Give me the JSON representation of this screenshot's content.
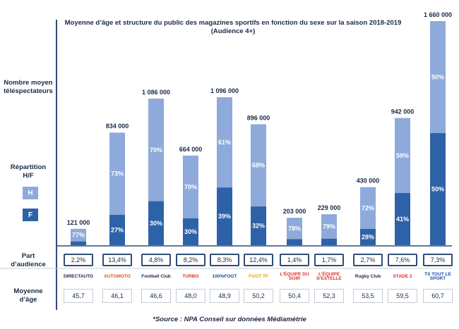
{
  "chart_data": {
    "type": "bar",
    "title": "Moyenne d’âge et structure du public des magazines sportifs en fonction du sexe sur la saison 2018-2019",
    "subtitle": "(Audience 4+)",
    "categories": [
      "DIRECT AUTO",
      "AUTOMOTO",
      "Football Club",
      "TURBO",
      "100% FOOT",
      "FOOT TF",
      "L'ÉQUIPE DU SOIR",
      "L'ÉQUIPE D'ESTELLE",
      "Rugby Club",
      "STADE 2",
      "TOUT LE SPORT"
    ],
    "series": [
      {
        "name": "Nombre moyen téléspectateurs",
        "values": [
          121000,
          834000,
          1086000,
          664000,
          1096000,
          896000,
          203000,
          229000,
          430000,
          942000,
          1660000
        ]
      },
      {
        "name": "H",
        "values": [
          77,
          73,
          70,
          70,
          61,
          68,
          78,
          79,
          72,
          59,
          50
        ]
      },
      {
        "name": "F",
        "values": [
          23,
          27,
          30,
          30,
          39,
          32,
          22,
          21,
          28,
          41,
          50
        ]
      }
    ],
    "value_labels": [
      "121 000",
      "834 000",
      "1 086 000",
      "664 000",
      "1 096 000",
      "896 000",
      "203 000",
      "229 000",
      "430 000",
      "942 000",
      "1 660 000"
    ],
    "h_labels": [
      "77%",
      "73%",
      "70%",
      "70%",
      "61%",
      "68%",
      "78%",
      "79%",
      "72%",
      "59%",
      "50%"
    ],
    "f_labels": [
      "",
      "27%",
      "30%",
      "30%",
      "39%",
      "32%",
      "",
      "",
      "28%",
      "41%",
      "50%"
    ],
    "part_audience": [
      "2,2%",
      "13,4%",
      "4,8%",
      "8,2%",
      "8,3%",
      "12,4%",
      "1,4%",
      "1,7%",
      "2,7%",
      "7,6%",
      "7,3%"
    ],
    "age_moyen": [
      "45,7",
      "46,1",
      "46,6",
      "48,0",
      "48,9",
      "50,2",
      "50,4",
      "52,3",
      "53,5",
      "59,5",
      "60,7"
    ],
    "ylim": [
      0,
      1660000
    ],
    "colors": {
      "H": "#8eaadb",
      "F": "#2e62a8",
      "axis": "#2f4d77"
    }
  },
  "labels": {
    "nombre_moyen": "Nombre moyen\ntéléspectateurs",
    "repartition": "Répartition\nH/F",
    "legend_h": "H",
    "legend_f": "F",
    "part_audience": "Part\nd’audience",
    "moyenne_age": "Moyenne\nd’âge"
  },
  "logos": [
    {
      "text": "DIRECTAUTO",
      "color": "#1b2a44",
      "icon": "direct-auto-logo"
    },
    {
      "text": "AUTOMOTO",
      "color": "#d9531e",
      "icon": "automoto-logo"
    },
    {
      "text": "Football Club",
      "color": "#1b2a44",
      "icon": "football-club-logo"
    },
    {
      "text": "TURBO",
      "color": "#e0312b",
      "icon": "turbo-logo"
    },
    {
      "text": "100%FOOT",
      "color": "#1e4ca3",
      "icon": "100-foot-logo"
    },
    {
      "text": "FOOT TF",
      "color": "#e8a300",
      "icon": "foot-tf-logo"
    },
    {
      "text": "L'ÉQUIPE DU SOIR",
      "color": "#e0312b",
      "icon": "equipe-du-soir-logo"
    },
    {
      "text": "L'ÉQUIPE D'ESTELLE",
      "color": "#e0312b",
      "icon": "equipe-estelle-logo"
    },
    {
      "text": "Rugby Club",
      "color": "#1b2a44",
      "icon": "rugby-club-logo"
    },
    {
      "text": "STADE 2",
      "color": "#e0312b",
      "icon": "stade-2-logo"
    },
    {
      "text": "TS TOUT LE SPORT",
      "color": "#1e4ca3",
      "icon": "tout-le-sport-logo"
    }
  ],
  "source": "*Source : NPA Conseil sur données Médiamétrie"
}
